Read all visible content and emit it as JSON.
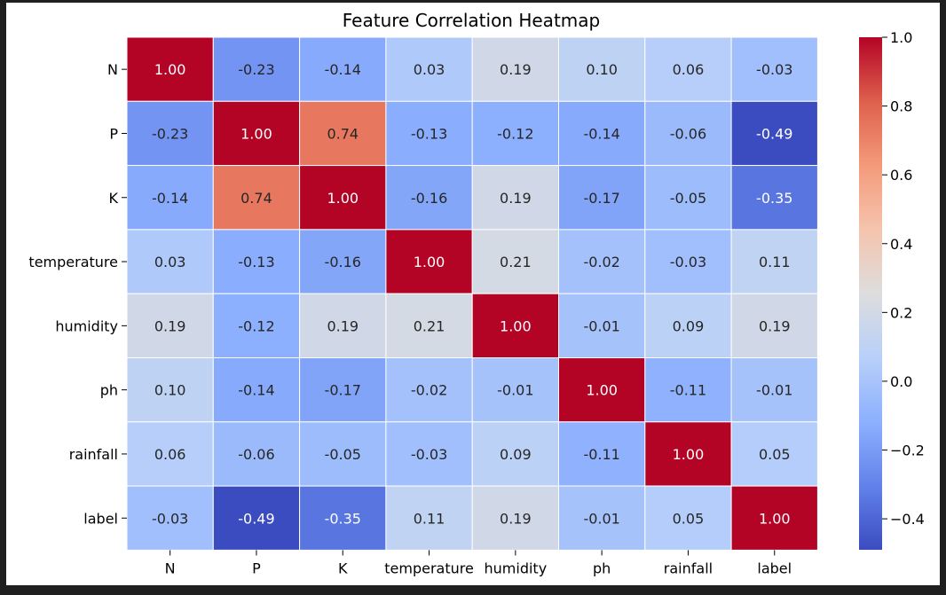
{
  "chart_data": {
    "type": "heatmap",
    "title": "Feature Correlation Heatmap",
    "xlabel": "",
    "ylabel": "",
    "row_labels": [
      "N",
      "P",
      "K",
      "temperature",
      "humidity",
      "ph",
      "rainfall",
      "label"
    ],
    "col_labels": [
      "N",
      "P",
      "K",
      "temperature",
      "humidity",
      "ph",
      "rainfall",
      "label"
    ],
    "values": [
      [
        1.0,
        -0.23,
        -0.14,
        0.03,
        0.19,
        0.1,
        0.06,
        -0.03
      ],
      [
        -0.23,
        1.0,
        0.74,
        -0.13,
        -0.12,
        -0.14,
        -0.06,
        -0.49
      ],
      [
        -0.14,
        0.74,
        1.0,
        -0.16,
        0.19,
        -0.17,
        -0.05,
        -0.35
      ],
      [
        0.03,
        -0.13,
        -0.16,
        1.0,
        0.21,
        -0.02,
        -0.03,
        0.11
      ],
      [
        0.19,
        -0.12,
        0.19,
        0.21,
        1.0,
        -0.01,
        0.09,
        0.19
      ],
      [
        0.1,
        -0.14,
        -0.17,
        -0.02,
        -0.01,
        1.0,
        -0.11,
        -0.01
      ],
      [
        0.06,
        -0.06,
        -0.05,
        -0.03,
        0.09,
        -0.11,
        1.0,
        0.05
      ],
      [
        -0.03,
        -0.49,
        -0.35,
        0.11,
        0.19,
        -0.01,
        0.05,
        1.0
      ]
    ],
    "value_format": "2 decimals",
    "colormap": "coolwarm",
    "colorbar": {
      "range": [
        -0.49,
        1.0
      ],
      "ticks": [
        1.0,
        0.8,
        0.6,
        0.4,
        0.2,
        0.0,
        -0.2,
        -0.4
      ],
      "tick_labels": [
        "1.0",
        "0.8",
        "0.6",
        "0.4",
        "0.2",
        "0.0",
        "−0.2",
        "−0.4"
      ]
    },
    "colors": {
      "cold": "#3b4cc0",
      "neutral": "#dddddd",
      "hot": "#b40426",
      "cell_border": "#ffffff",
      "background": "#1f1f1f"
    }
  }
}
